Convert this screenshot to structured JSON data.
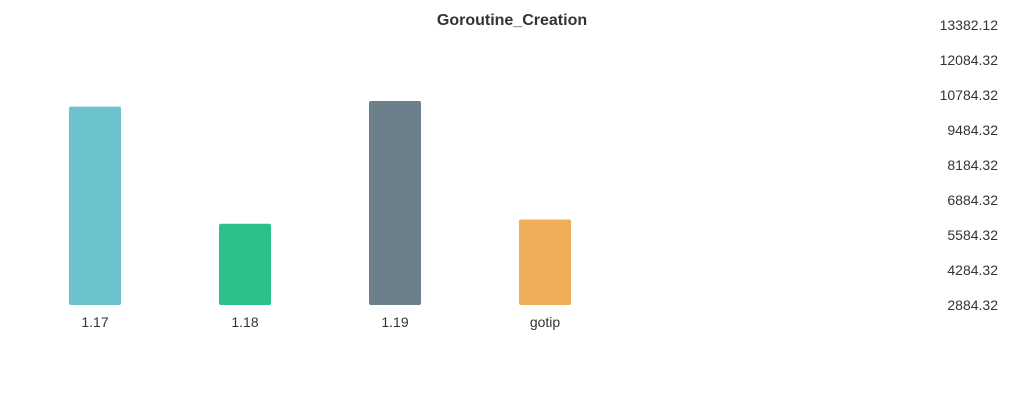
{
  "chart_data": {
    "type": "bar",
    "title": "Goroutine_Creation",
    "xlabel": "",
    "ylabel": "",
    "categories": [
      "1.17",
      "1.18",
      "1.19",
      "gotip"
    ],
    "values": [
      10350,
      5940,
      10560,
      6100
    ],
    "colors": [
      "#6cc3cb",
      "#2bc189",
      "#6c7f8a",
      "#f0ad5a"
    ],
    "ylim": [
      2884.32,
      13382.12
    ],
    "y_ticks": [
      "13382.12",
      "12084.32",
      "10784.32",
      "9484.32",
      "8184.32",
      "6884.32",
      "5584.32",
      "4284.32",
      "2884.32"
    ],
    "grid": false,
    "legend": "none",
    "y_axis_position": "right"
  }
}
